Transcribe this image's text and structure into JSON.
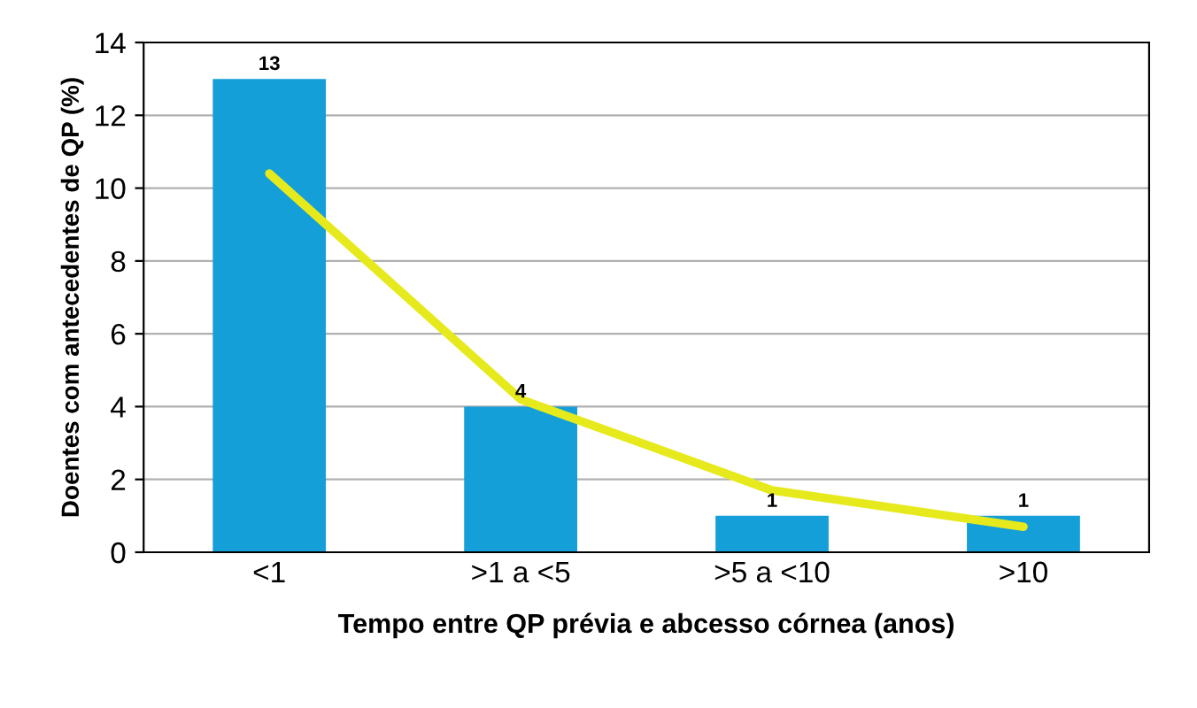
{
  "chart_data": {
    "type": "bar",
    "xlabel": "Tempo entre QP prévia e abcesso córnea (anos)",
    "ylabel": "Doentes com antecedentes de QP (%)",
    "categories": [
      "<1",
      ">1 a <5",
      ">5 a <10",
      ">10"
    ],
    "series": [
      {
        "color": "#149fd9",
        "values": [
          13,
          4,
          1,
          1
        ],
        "value_labels": [
          "13",
          "4",
          "1",
          "1"
        ]
      },
      {
        "type": "line",
        "color": "#e6ea1c",
        "x": [
          "<1",
          ">1 a <5",
          ">5 a <10",
          ">10"
        ],
        "values": [
          10.4,
          4.2,
          1.7,
          0.7
        ]
      }
    ],
    "ylim": [
      0,
      14
    ],
    "yticks": [
      0,
      2,
      4,
      6,
      8,
      10,
      12,
      14
    ],
    "grid": "y"
  }
}
